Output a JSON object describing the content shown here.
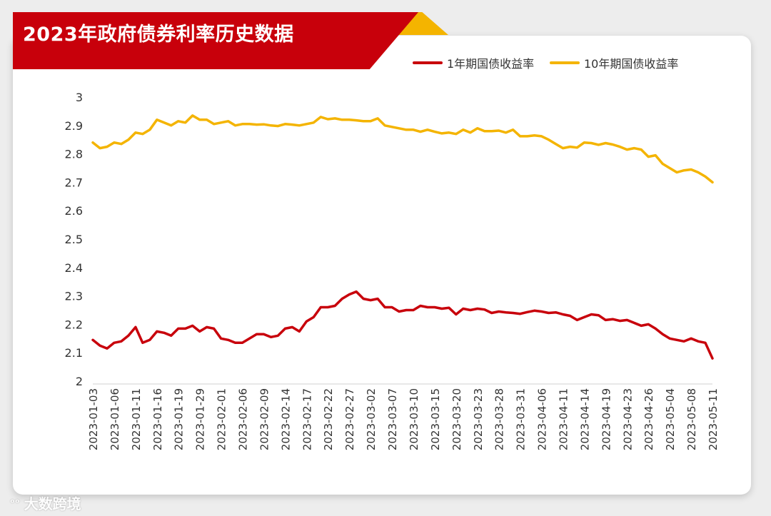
{
  "header": {
    "title": "2023年政府债券利率历史数据"
  },
  "watermark": {
    "text": "大数跨境",
    "logo": "logo-icon"
  },
  "colors": {
    "red": "#c8000b",
    "gold": "#f4b400"
  },
  "chart_data": {
    "type": "line",
    "ylim": [
      2,
      3
    ],
    "yticks": [
      "3",
      "2.9",
      "2.8",
      "2.7",
      "2.6",
      "2.5",
      "2.4",
      "2.3",
      "2.2",
      "2.1",
      "2"
    ],
    "grid": false,
    "legend": "top-right",
    "xticklabels": [
      "2023-01-03",
      "2023-01-06",
      "2023-01-11",
      "2023-01-16",
      "2023-01-19",
      "2023-01-29",
      "2023-02-01",
      "2023-02-06",
      "2023-02-09",
      "2023-02-14",
      "2023-02-17",
      "2023-02-22",
      "2023-02-27",
      "2023-03-02",
      "2023-03-07",
      "2023-03-10",
      "2023-03-15",
      "2023-03-20",
      "2023-03-23",
      "2023-03-28",
      "2023-03-31",
      "2023-04-06",
      "2023-04-11",
      "2023-04-14",
      "2023-04-19",
      "2023-04-23",
      "2023-04-26",
      "2023-05-04",
      "2023-05-08",
      "2023-05-11"
    ],
    "series": [
      {
        "name": "1年期国债收益率",
        "color": "#c8000b",
        "values": [
          2.145,
          2.125,
          2.115,
          2.135,
          2.14,
          2.16,
          2.19,
          2.135,
          2.145,
          2.175,
          2.17,
          2.16,
          2.185,
          2.185,
          2.195,
          2.175,
          2.19,
          2.185,
          2.15,
          2.145,
          2.135,
          2.135,
          2.15,
          2.165,
          2.165,
          2.155,
          2.16,
          2.185,
          2.19,
          2.175,
          2.21,
          2.225,
          2.26,
          2.26,
          2.265,
          2.29,
          2.305,
          2.315,
          2.29,
          2.285,
          2.29,
          2.26,
          2.26,
          2.245,
          2.25,
          2.25,
          2.265,
          2.26,
          2.26,
          2.255,
          2.258,
          2.235,
          2.255,
          2.25,
          2.255,
          2.252,
          2.24,
          2.245,
          2.242,
          2.24,
          2.237,
          2.243,
          2.248,
          2.245,
          2.24,
          2.242,
          2.235,
          2.23,
          2.215,
          2.225,
          2.235,
          2.232,
          2.215,
          2.218,
          2.212,
          2.215,
          2.205,
          2.195,
          2.2,
          2.185,
          2.165,
          2.15,
          2.145,
          2.14,
          2.15,
          2.14,
          2.135,
          2.08
        ]
      },
      {
        "name": "10年期国债收益率",
        "color": "#f4b400",
        "values": [
          2.84,
          2.82,
          2.825,
          2.84,
          2.835,
          2.85,
          2.875,
          2.87,
          2.885,
          2.92,
          2.91,
          2.9,
          2.915,
          2.91,
          2.935,
          2.92,
          2.92,
          2.905,
          2.91,
          2.915,
          2.9,
          2.905,
          2.905,
          2.903,
          2.904,
          2.9,
          2.898,
          2.905,
          2.903,
          2.9,
          2.905,
          2.91,
          2.93,
          2.922,
          2.925,
          2.92,
          2.92,
          2.918,
          2.915,
          2.915,
          2.925,
          2.9,
          2.895,
          2.89,
          2.885,
          2.885,
          2.878,
          2.885,
          2.878,
          2.872,
          2.875,
          2.87,
          2.885,
          2.875,
          2.89,
          2.88,
          2.88,
          2.882,
          2.875,
          2.885,
          2.862,
          2.862,
          2.865,
          2.862,
          2.85,
          2.835,
          2.82,
          2.825,
          2.822,
          2.84,
          2.838,
          2.832,
          2.838,
          2.833,
          2.825,
          2.815,
          2.82,
          2.815,
          2.79,
          2.795,
          2.765,
          2.75,
          2.735,
          2.742,
          2.745,
          2.735,
          2.72,
          2.7
        ]
      }
    ]
  }
}
